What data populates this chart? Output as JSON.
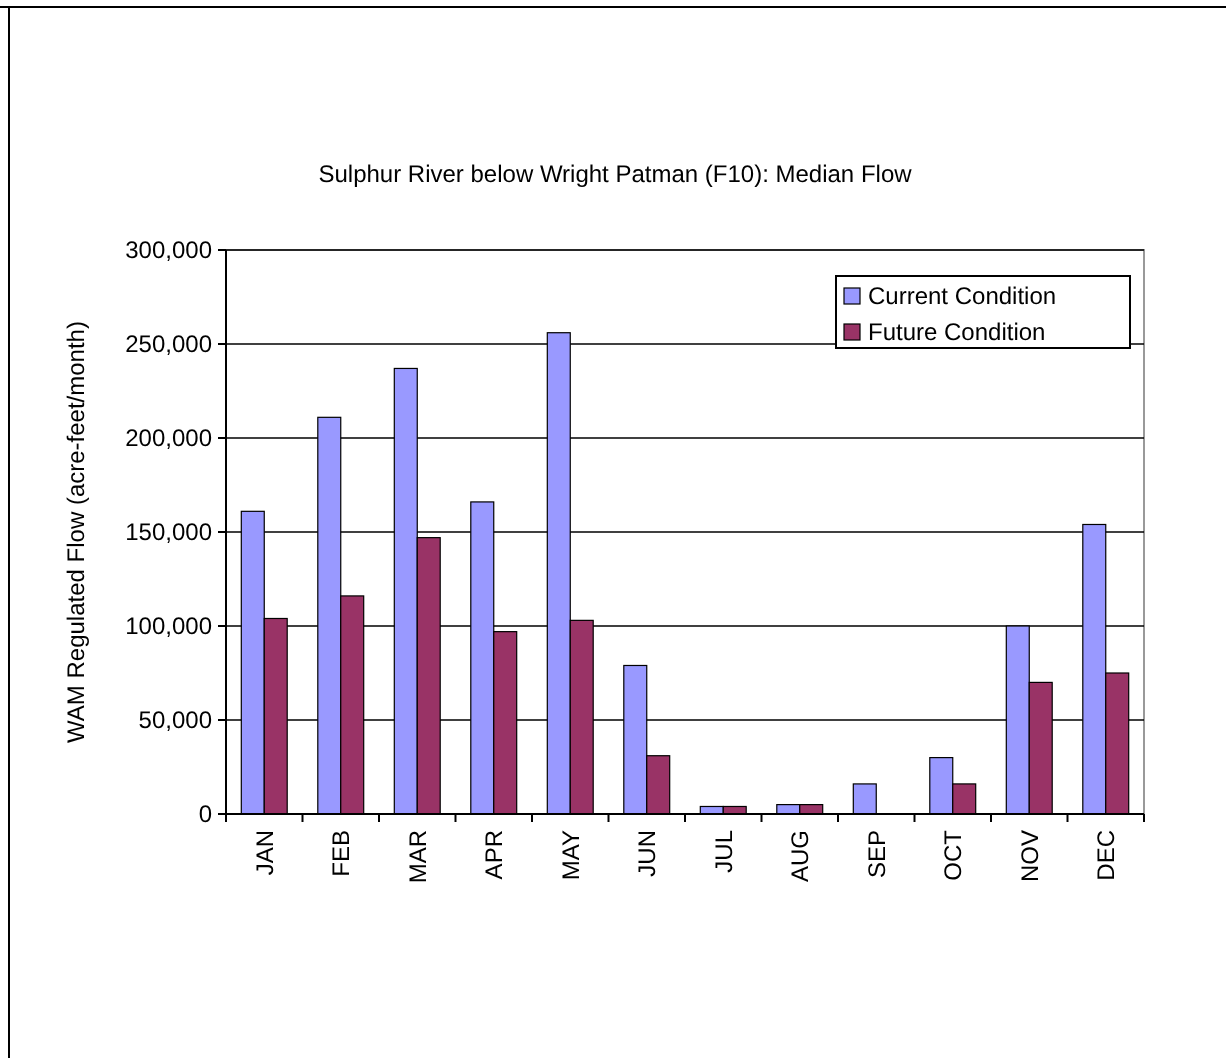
{
  "chart_data": {
    "type": "bar",
    "title": "Sulphur River below Wright Patman (F10): Median Flow",
    "ylabel": "WAM Regulated Flow (acre-feet/month)",
    "categories": [
      "JAN",
      "FEB",
      "MAR",
      "APR",
      "MAY",
      "JUN",
      "JUL",
      "AUG",
      "SEP",
      "OCT",
      "NOV",
      "DEC"
    ],
    "series": [
      {
        "name": "Current Condition",
        "color": "#9999ff",
        "values": [
          161000,
          211000,
          237000,
          166000,
          256000,
          79000,
          4000,
          5000,
          16000,
          30000,
          100000,
          154000
        ]
      },
      {
        "name": "Future Condition",
        "color": "#993366",
        "values": [
          104000,
          116000,
          147000,
          97000,
          103000,
          31000,
          4000,
          5000,
          0,
          16000,
          70000,
          75000
        ]
      }
    ],
    "ylim": [
      0,
      300000
    ],
    "yticks": [
      {
        "value": 0,
        "label": "0"
      },
      {
        "value": 50000,
        "label": "50,000"
      },
      {
        "value": 100000,
        "label": "100,000"
      },
      {
        "value": 150000,
        "label": "150,000"
      },
      {
        "value": 200000,
        "label": "200,000"
      },
      {
        "value": 250000,
        "label": "250,000"
      },
      {
        "value": 300000,
        "label": "300,000"
      }
    ],
    "grid": "y",
    "legend": "top right"
  }
}
